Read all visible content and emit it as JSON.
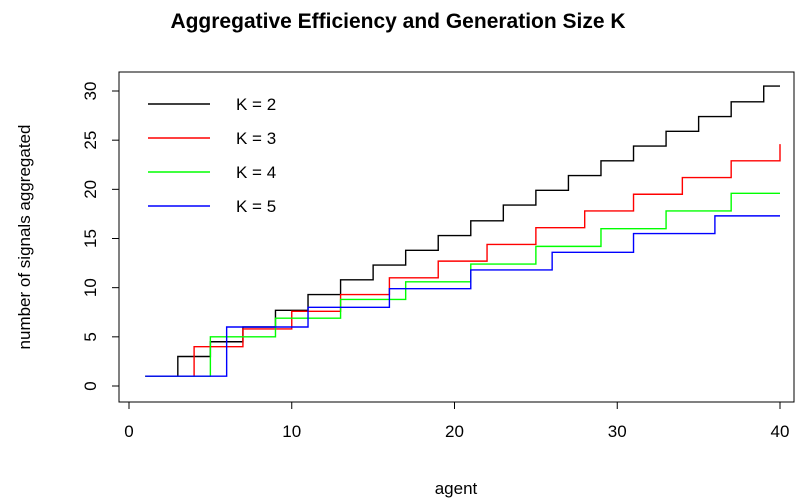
{
  "chart_data": {
    "type": "line",
    "title": "Aggregative Efficiency and Generation Size K",
    "xlabel": "agent",
    "ylabel": "number of signals aggregated",
    "xlim": [
      0,
      40
    ],
    "ylim": [
      0,
      30
    ],
    "x_ticks": [
      0,
      10,
      20,
      30,
      40
    ],
    "y_ticks": [
      0,
      5,
      10,
      15,
      20,
      25,
      30
    ],
    "grid": false,
    "legend_position": "top-left",
    "series": [
      {
        "name": "K = 2",
        "color": "#000000",
        "x": [
          1,
          2,
          3,
          4,
          5,
          6,
          7,
          8,
          9,
          10,
          11,
          12,
          13,
          14,
          15,
          16,
          17,
          18,
          19,
          20,
          21,
          22,
          23,
          24,
          25,
          26,
          27,
          28,
          29,
          30,
          31,
          32,
          33,
          34,
          35,
          36,
          37,
          38,
          39,
          40
        ],
        "values": [
          1,
          1,
          3,
          3,
          4.5,
          4.5,
          6,
          6,
          7.7,
          7.7,
          9.3,
          9.3,
          10.8,
          10.8,
          12.3,
          12.3,
          13.8,
          13.8,
          15.3,
          15.3,
          16.8,
          16.8,
          18.4,
          18.4,
          19.9,
          19.9,
          21.4,
          21.4,
          22.9,
          22.9,
          24.4,
          24.4,
          25.9,
          25.9,
          27.4,
          27.4,
          28.9,
          28.9,
          30.5,
          30.5
        ]
      },
      {
        "name": "K = 3",
        "color": "#ff0000",
        "x": [
          1,
          2,
          3,
          4,
          5,
          6,
          7,
          8,
          9,
          10,
          11,
          12,
          13,
          14,
          15,
          16,
          17,
          18,
          19,
          20,
          21,
          22,
          23,
          24,
          25,
          26,
          27,
          28,
          29,
          30,
          31,
          32,
          33,
          34,
          35,
          36,
          37,
          38,
          39,
          40
        ],
        "values": [
          1,
          1,
          1,
          4,
          4,
          4,
          5.8,
          5.8,
          5.8,
          7.6,
          7.6,
          7.6,
          9.3,
          9.3,
          9.3,
          11,
          11,
          11,
          12.7,
          12.7,
          12.7,
          14.4,
          14.4,
          14.4,
          16.1,
          16.1,
          16.1,
          17.8,
          17.8,
          17.8,
          19.5,
          19.5,
          19.5,
          21.2,
          21.2,
          21.2,
          22.9,
          22.9,
          22.9,
          24.6
        ]
      },
      {
        "name": "K = 4",
        "color": "#00ff00",
        "x": [
          1,
          2,
          3,
          4,
          5,
          6,
          7,
          8,
          9,
          10,
          11,
          12,
          13,
          14,
          15,
          16,
          17,
          18,
          19,
          20,
          21,
          22,
          23,
          24,
          25,
          26,
          27,
          28,
          29,
          30,
          31,
          32,
          33,
          34,
          35,
          36,
          37,
          38,
          39,
          40
        ],
        "values": [
          1,
          1,
          1,
          1,
          5,
          5,
          5,
          5,
          6.9,
          6.9,
          6.9,
          6.9,
          8.8,
          8.8,
          8.8,
          8.8,
          10.6,
          10.6,
          10.6,
          10.6,
          12.4,
          12.4,
          12.4,
          12.4,
          14.2,
          14.2,
          14.2,
          14.2,
          16,
          16,
          16,
          16,
          17.8,
          17.8,
          17.8,
          17.8,
          19.6,
          19.6,
          19.6,
          19.6
        ]
      },
      {
        "name": "K = 5",
        "color": "#0000ff",
        "x": [
          1,
          2,
          3,
          4,
          5,
          6,
          7,
          8,
          9,
          10,
          11,
          12,
          13,
          14,
          15,
          16,
          17,
          18,
          19,
          20,
          21,
          22,
          23,
          24,
          25,
          26,
          27,
          28,
          29,
          30,
          31,
          32,
          33,
          34,
          35,
          36,
          37,
          38,
          39,
          40
        ],
        "values": [
          1,
          1,
          1,
          1,
          1,
          6,
          6,
          6,
          6,
          6,
          8,
          8,
          8,
          8,
          8,
          9.9,
          9.9,
          9.9,
          9.9,
          9.9,
          11.8,
          11.8,
          11.8,
          11.8,
          11.8,
          13.6,
          13.6,
          13.6,
          13.6,
          13.6,
          15.5,
          15.5,
          15.5,
          15.5,
          15.5,
          17.3,
          17.3,
          17.3,
          17.3,
          17.3
        ]
      }
    ]
  }
}
